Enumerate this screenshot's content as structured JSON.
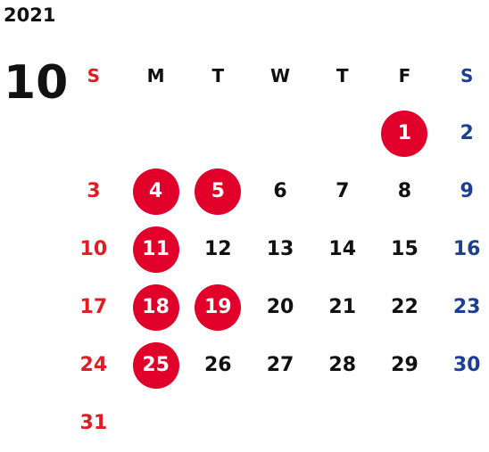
{
  "year": "2021",
  "month": "10",
  "weekdays": [
    "S",
    "M",
    "T",
    "W",
    "T",
    "F",
    "S"
  ],
  "weeks": [
    [
      "",
      "",
      "",
      "",
      "",
      "1",
      "2"
    ],
    [
      "3",
      "4",
      "5",
      "6",
      "7",
      "8",
      "9"
    ],
    [
      "10",
      "11",
      "12",
      "13",
      "14",
      "15",
      "16"
    ],
    [
      "17",
      "18",
      "19",
      "20",
      "21",
      "22",
      "23"
    ],
    [
      "24",
      "25",
      "26",
      "27",
      "28",
      "29",
      "30"
    ],
    [
      "31",
      "",
      "",
      "",
      "",
      "",
      ""
    ]
  ],
  "highlighted_days": [
    "1",
    "4",
    "5",
    "11",
    "18",
    "19",
    "25"
  ],
  "colors": {
    "sunday": "#e31b23",
    "saturday": "#1c3f94",
    "highlight": "#e0002a",
    "text": "#111111"
  }
}
